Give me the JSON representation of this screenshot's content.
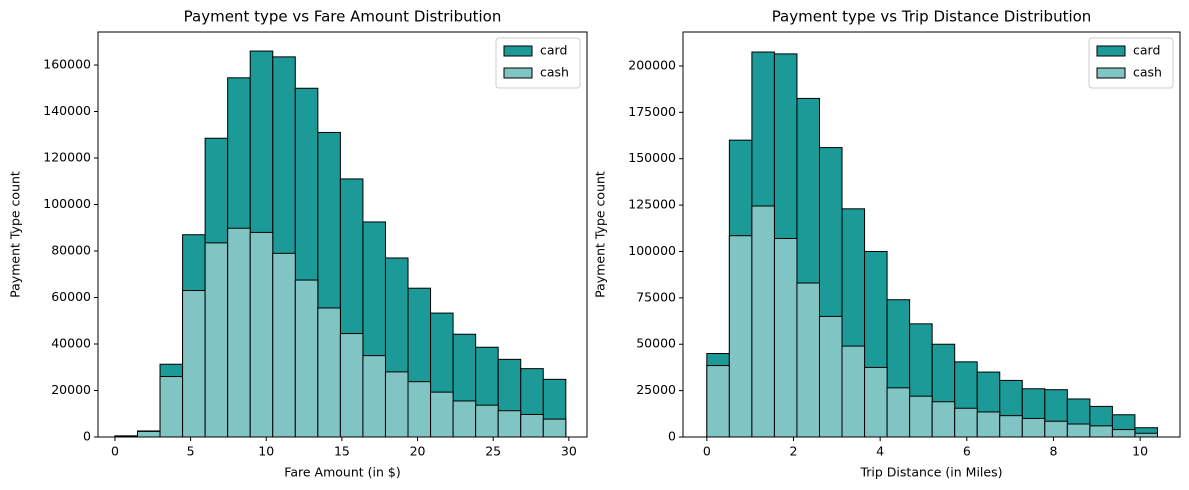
{
  "chart_data": [
    {
      "type": "histogram",
      "title": "Payment type vs Fare Amount Distribution",
      "x_label": "Fare Amount (in $)",
      "y_label": "Payment Type count",
      "bins": [
        0,
        1.49,
        2.98,
        4.47,
        5.96,
        7.45,
        8.94,
        10.43,
        11.92,
        13.41,
        14.9,
        16.39,
        17.88,
        19.37,
        20.86,
        22.35,
        23.84,
        25.33,
        26.82,
        28.31,
        29.8
      ],
      "series": [
        {
          "name": "card",
          "color": "#1b9a98",
          "values": [
            500,
            2600,
            31300,
            87000,
            128500,
            154500,
            166000,
            163500,
            150000,
            131000,
            111000,
            92500,
            77000,
            64000,
            53300,
            44200,
            38600,
            33400,
            29400,
            24800
          ]
        },
        {
          "name": "cash",
          "color": "#80c4c4",
          "values": [
            300,
            2400,
            26000,
            63000,
            83500,
            89800,
            88000,
            79000,
            67500,
            55500,
            44500,
            35000,
            28000,
            23800,
            19300,
            15500,
            13700,
            11300,
            9700,
            7700
          ]
        }
      ],
      "xlim": [
        -1.12,
        31.2
      ],
      "ylim": [
        0,
        174200
      ],
      "xticks": [
        0,
        5,
        10,
        15,
        20,
        25,
        30
      ],
      "yticks": [
        0,
        20000,
        40000,
        60000,
        80000,
        100000,
        120000,
        140000,
        160000
      ],
      "legend": "upper right"
    },
    {
      "type": "histogram",
      "title": "Payment type vs Trip Distance Distribution",
      "x_label": "Trip Distance (in Miles)",
      "y_label": "Payment Type count",
      "bins": [
        0,
        0.52,
        1.04,
        1.56,
        2.08,
        2.6,
        3.12,
        3.64,
        4.16,
        4.68,
        5.2,
        5.72,
        6.24,
        6.76,
        7.28,
        7.8,
        8.32,
        8.84,
        9.36,
        9.88,
        10.4
      ],
      "series": [
        {
          "name": "card",
          "color": "#1b9a98",
          "values": [
            45000,
            160000,
            207500,
            206500,
            182500,
            156000,
            123000,
            100000,
            74000,
            61000,
            50000,
            40500,
            35000,
            30500,
            26000,
            25500,
            20500,
            16500,
            12000,
            5000
          ]
        },
        {
          "name": "cash",
          "color": "#80c4c4",
          "values": [
            38500,
            108500,
            124500,
            107000,
            83000,
            65000,
            49000,
            37500,
            26500,
            22000,
            19000,
            15500,
            13500,
            11500,
            10000,
            8500,
            7000,
            6000,
            4000,
            2000
          ]
        }
      ],
      "xlim": [
        -0.55,
        10.92
      ],
      "ylim": [
        0,
        218300
      ],
      "xticks": [
        0,
        2,
        4,
        6,
        8,
        10
      ],
      "yticks": [
        0,
        25000,
        50000,
        75000,
        100000,
        125000,
        150000,
        175000,
        200000
      ],
      "legend": "upper right"
    }
  ]
}
